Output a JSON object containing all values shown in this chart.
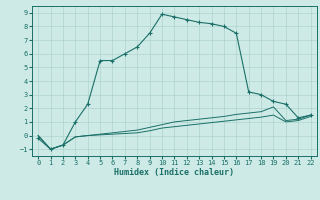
{
  "xlabel": "Humidex (Indice chaleur)",
  "background_color": "#ceeae6",
  "grid_color": "#aed4cf",
  "line_color": "#1a7068",
  "xlim": [
    -0.5,
    22.5
  ],
  "ylim": [
    -1.5,
    9.5
  ],
  "xticks": [
    0,
    1,
    2,
    3,
    4,
    5,
    6,
    7,
    8,
    9,
    10,
    11,
    12,
    13,
    14,
    15,
    16,
    17,
    18,
    19,
    20,
    21,
    22
  ],
  "yticks": [
    -1,
    0,
    1,
    2,
    3,
    4,
    5,
    6,
    7,
    8,
    9
  ],
  "line1_x": [
    0,
    1,
    2,
    3,
    4,
    5,
    6,
    7,
    8,
    9,
    10,
    11,
    12,
    13,
    14,
    15,
    16,
    17,
    18,
    19,
    20,
    21,
    22
  ],
  "line1_y": [
    0.0,
    -1.0,
    -0.7,
    -0.1,
    0.0,
    0.05,
    0.1,
    0.15,
    0.2,
    0.35,
    0.55,
    0.65,
    0.75,
    0.85,
    0.95,
    1.05,
    1.15,
    1.25,
    1.35,
    1.5,
    1.0,
    1.1,
    1.4
  ],
  "line2_x": [
    0,
    1,
    2,
    3,
    4,
    5,
    6,
    7,
    8,
    9,
    10,
    11,
    12,
    13,
    14,
    15,
    16,
    17,
    18,
    19,
    20,
    21,
    22
  ],
  "line2_y": [
    0.0,
    -1.0,
    -0.7,
    -0.1,
    0.0,
    0.1,
    0.2,
    0.3,
    0.4,
    0.6,
    0.8,
    1.0,
    1.1,
    1.2,
    1.3,
    1.4,
    1.55,
    1.65,
    1.75,
    2.1,
    1.1,
    1.2,
    1.5
  ],
  "line3_x": [
    0,
    1,
    2,
    3,
    4,
    5,
    6,
    7,
    8,
    9,
    10,
    11,
    12,
    13,
    14,
    15,
    16,
    17,
    18,
    19,
    20,
    21,
    22
  ],
  "line3_y": [
    -0.2,
    -1.0,
    -0.7,
    1.0,
    2.3,
    5.5,
    5.5,
    6.0,
    6.5,
    7.5,
    8.9,
    8.7,
    8.5,
    8.3,
    8.2,
    8.0,
    7.5,
    3.2,
    3.0,
    2.5,
    2.3,
    1.3,
    1.5
  ]
}
